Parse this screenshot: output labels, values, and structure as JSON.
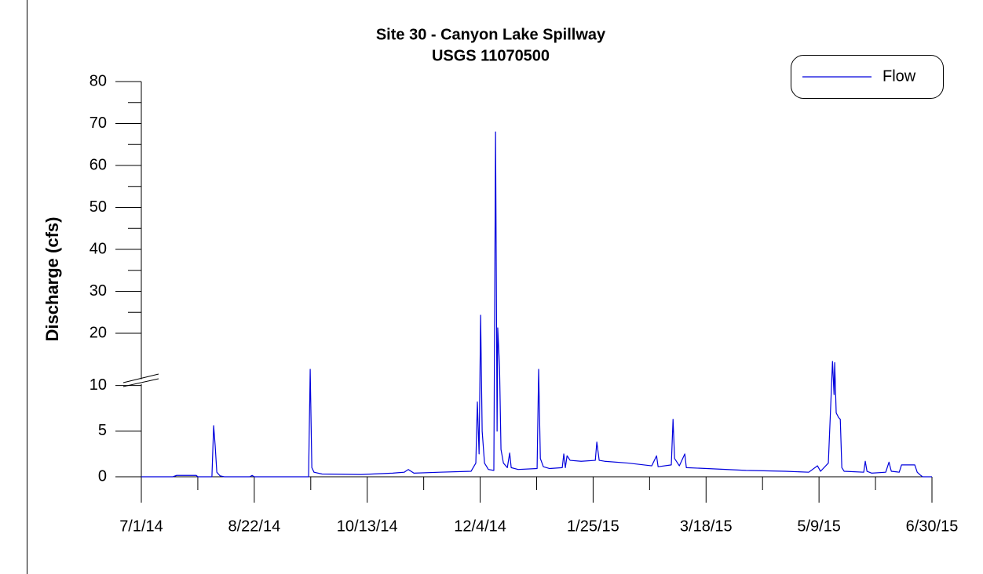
{
  "chart_data": {
    "type": "line",
    "title": [
      "Site 30 - Canyon Lake Spillway",
      "USGS 11070500"
    ],
    "ylabel": "Discharge (cfs)",
    "broken_y_axis": true,
    "y_segments": [
      {
        "ylim": [
          0,
          11
        ],
        "yticks": [
          0,
          5,
          10
        ]
      },
      {
        "ylim": [
          10,
          80
        ],
        "yticks": [
          20,
          30,
          40,
          50,
          60,
          70,
          80
        ],
        "minor_yticks": [
          25,
          35,
          45,
          55,
          65,
          75
        ]
      }
    ],
    "xlim": [
      "2014-07-01",
      "2015-06-30"
    ],
    "xticks": [
      {
        "value": "2014-07-01",
        "label": "7/1/14"
      },
      {
        "value": "2014-08-22",
        "label": "8/22/14"
      },
      {
        "value": "2014-10-13",
        "label": "10/13/14"
      },
      {
        "value": "2014-12-04",
        "label": "12/4/14"
      },
      {
        "value": "2015-01-25",
        "label": "1/25/15"
      },
      {
        "value": "2015-03-18",
        "label": "3/18/15"
      },
      {
        "value": "2015-05-09",
        "label": "5/9/15"
      },
      {
        "value": "2015-06-30",
        "label": "6/30/15"
      }
    ],
    "minor_xticks": [
      "2014-07-27",
      "2014-09-17",
      "2014-11-08",
      "2014-12-30",
      "2015-02-20",
      "2015-04-13",
      "2015-06-04"
    ],
    "legend": "upper right",
    "series": [
      {
        "name": "Flow",
        "color": "#0000dd",
        "x": [
          "2014-07-01",
          "2014-07-15T12:00",
          "2014-07-17T07:00",
          "2014-07-26T07:00",
          "2014-07-27",
          "2014-08-02T12:00",
          "2014-08-03T07:00",
          "2014-08-04",
          "2014-08-04T18:00",
          "2014-08-06T06:00",
          "2014-08-08T06:00",
          "2014-08-19T22:00",
          "2014-08-21",
          "2014-08-22",
          "2014-09-16",
          "2014-09-16T18:00",
          "2014-09-17T12:00",
          "2014-09-18T12:00",
          "2014-09-22T05:00",
          "2014-10-10T05:00",
          "2014-10-24T17:00",
          "2014-10-30T02:00",
          "2014-10-31T22:00",
          "2014-11-03T12:00",
          "2014-11-15T10:00",
          "2014-11-29T19:00",
          "2014-12-02",
          "2014-12-02T17:00",
          "2014-12-03T12:00",
          "2014-12-04T05:00",
          "2014-12-04T22:00",
          "2014-12-06",
          "2014-12-07T19:00",
          "2014-12-10T07:00",
          "2014-12-11T02:00",
          "2014-12-11T19:00",
          "2014-12-12T02:00",
          "2014-12-12T22:00",
          "2014-12-13T14:00",
          "2014-12-14T17:00",
          "2014-12-16T12:00",
          "2014-12-17T14:00",
          "2014-12-18T07:00",
          "2014-12-21T12:00",
          "2014-12-30T05:00",
          "2014-12-30T22:00",
          "2014-12-31T17:00",
          "2015-01-02T02:00",
          "2015-01-05",
          "2015-01-10T19:00",
          "2015-01-11T12:00",
          "2015-01-12T05:00",
          "2015-01-13",
          "2015-01-14T10:00",
          "2015-01-19T12:00",
          "2015-01-26",
          "2015-01-26T17:00",
          "2015-01-27T19:00",
          "2015-01-30T07:00",
          "2015-02-10T05:00",
          "2015-02-21",
          "2015-02-23T05:00",
          "2015-02-23T22:00",
          "2015-03-02",
          "2015-03-02T19:00",
          "2015-03-03T12:00",
          "2015-03-05T17:00",
          "2015-03-08T05:00",
          "2015-03-08T22:00",
          "2015-03-18T07:00",
          "2015-04-05T10:00",
          "2015-04-23T12:00",
          "2015-05-04T07:00",
          "2015-05-08T07:00",
          "2015-05-09T17:00",
          "2015-05-13T07:00",
          "2015-05-14T10:00",
          "2015-05-15T05:00",
          "2015-05-15T22:00",
          "2015-05-16T05:00",
          "2015-05-16T22:00",
          "2015-05-18",
          "2015-05-18T19:00",
          "2015-05-19T12:00",
          "2015-05-20T14:00",
          "2015-05-29T14:00",
          "2015-05-30T07:00",
          "2015-05-31T02:00",
          "2015-06-02T05:00",
          "2015-06-08T17:00",
          "2015-06-10T05:00",
          "2015-06-11T07:00",
          "2015-06-14T22:00",
          "2015-06-16",
          "2015-06-22T02:00",
          "2015-06-23T05:00",
          "2015-06-24T14:00",
          "2015-06-25T17:00",
          "2015-06-30"
        ],
        "values": [
          0,
          0,
          0.15,
          0.15,
          0,
          0,
          5.6,
          3.4,
          0.5,
          0.1,
          0,
          0,
          0.15,
          0,
          0,
          11.4,
          1.0,
          0.5,
          0.3,
          0.25,
          0.4,
          0.5,
          0.8,
          0.4,
          0.5,
          0.6,
          1.5,
          8.2,
          2.5,
          24.3,
          5,
          1.5,
          0.8,
          0.7,
          68,
          5,
          21.3,
          12,
          3,
          1.5,
          1,
          2.6,
          1,
          0.8,
          0.9,
          11.4,
          2,
          1.1,
          0.9,
          1.0,
          2.5,
          1.0,
          2.3,
          1.8,
          1.7,
          1.8,
          3.8,
          1.8,
          1.7,
          1.5,
          1.2,
          2.3,
          1.1,
          1.3,
          6.3,
          2,
          1.2,
          2.5,
          1.0,
          0.9,
          0.7,
          0.6,
          0.5,
          1.2,
          0.6,
          1.5,
          8,
          13.3,
          9,
          13.0,
          7,
          6.5,
          6.3,
          1,
          0.6,
          0.5,
          1.7,
          0.6,
          0.4,
          0.5,
          1.6,
          0.6,
          0.5,
          1.3,
          1.3,
          0.5,
          0.2,
          0,
          0
        ]
      }
    ]
  }
}
